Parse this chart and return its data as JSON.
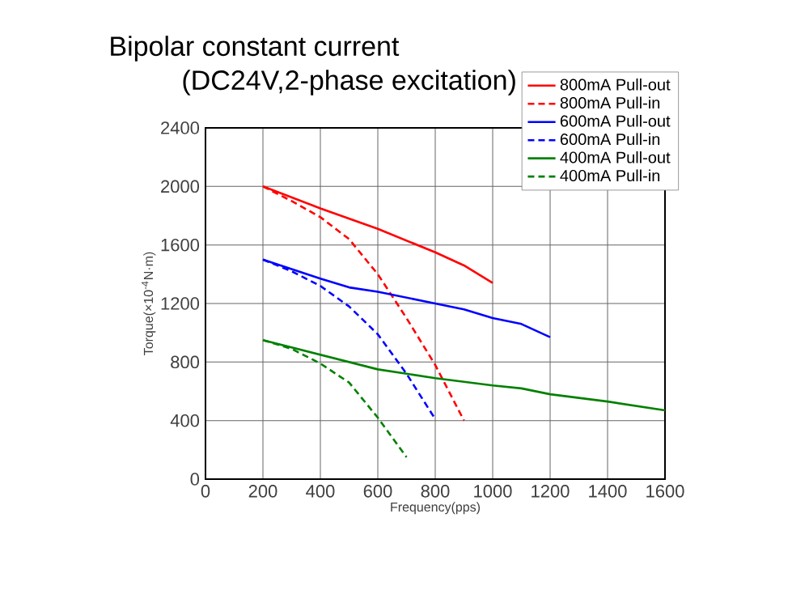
{
  "chart_data": {
    "type": "line",
    "title": "Bipolar constant current",
    "subtitle": "(DC24V,2-phase excitation)",
    "xlabel": "Frequency(pps)",
    "ylabel": "Torque(×10$^{-4}$N·m)",
    "xlim": [
      0,
      1600
    ],
    "xticks": [
      0,
      200,
      400,
      600,
      800,
      1000,
      1200,
      1400,
      1600
    ],
    "ylim": [
      0,
      2400
    ],
    "yticks": [
      0,
      400,
      800,
      1200,
      1600,
      2000,
      2400
    ],
    "grid": true,
    "legend": "top right",
    "marker": "none",
    "series": [
      {
        "name": "800mA Pull-out",
        "color": "#ff0000",
        "line_style": "solid",
        "x": [
          200,
          400,
          600,
          800,
          900,
          1000
        ],
        "values": [
          2000,
          1850,
          1710,
          1550,
          1460,
          1340
        ]
      },
      {
        "name": "800mA Pull-in",
        "color": "#ff0000",
        "line_style": "dashed",
        "x": [
          200,
          300,
          400,
          500,
          600,
          700,
          800,
          900
        ],
        "values": [
          2000,
          1900,
          1790,
          1640,
          1400,
          1100,
          780,
          400
        ]
      },
      {
        "name": "600mA Pull-out",
        "color": "#0000ff",
        "line_style": "solid",
        "x": [
          200,
          400,
          500,
          600,
          700,
          800,
          900,
          1000,
          1100,
          1200
        ],
        "values": [
          1500,
          1370,
          1310,
          1280,
          1240,
          1200,
          1160,
          1100,
          1060,
          970
        ]
      },
      {
        "name": "600mA Pull-in",
        "color": "#0000ff",
        "line_style": "dashed",
        "x": [
          200,
          300,
          400,
          500,
          600,
          700,
          800
        ],
        "values": [
          1500,
          1420,
          1320,
          1180,
          990,
          720,
          410
        ]
      },
      {
        "name": "400mA Pull-out",
        "color": "#008000",
        "line_style": "solid",
        "x": [
          200,
          400,
          500,
          600,
          700,
          800,
          1000,
          1100,
          1200,
          1400,
          1600
        ],
        "values": [
          950,
          850,
          800,
          750,
          720,
          690,
          640,
          620,
          580,
          530,
          470
        ]
      },
      {
        "name": "400mA Pull-in",
        "color": "#008000",
        "line_style": "dashed",
        "x": [
          200,
          300,
          400,
          500,
          600,
          700
        ],
        "values": [
          950,
          890,
          790,
          660,
          420,
          150
        ]
      }
    ]
  }
}
